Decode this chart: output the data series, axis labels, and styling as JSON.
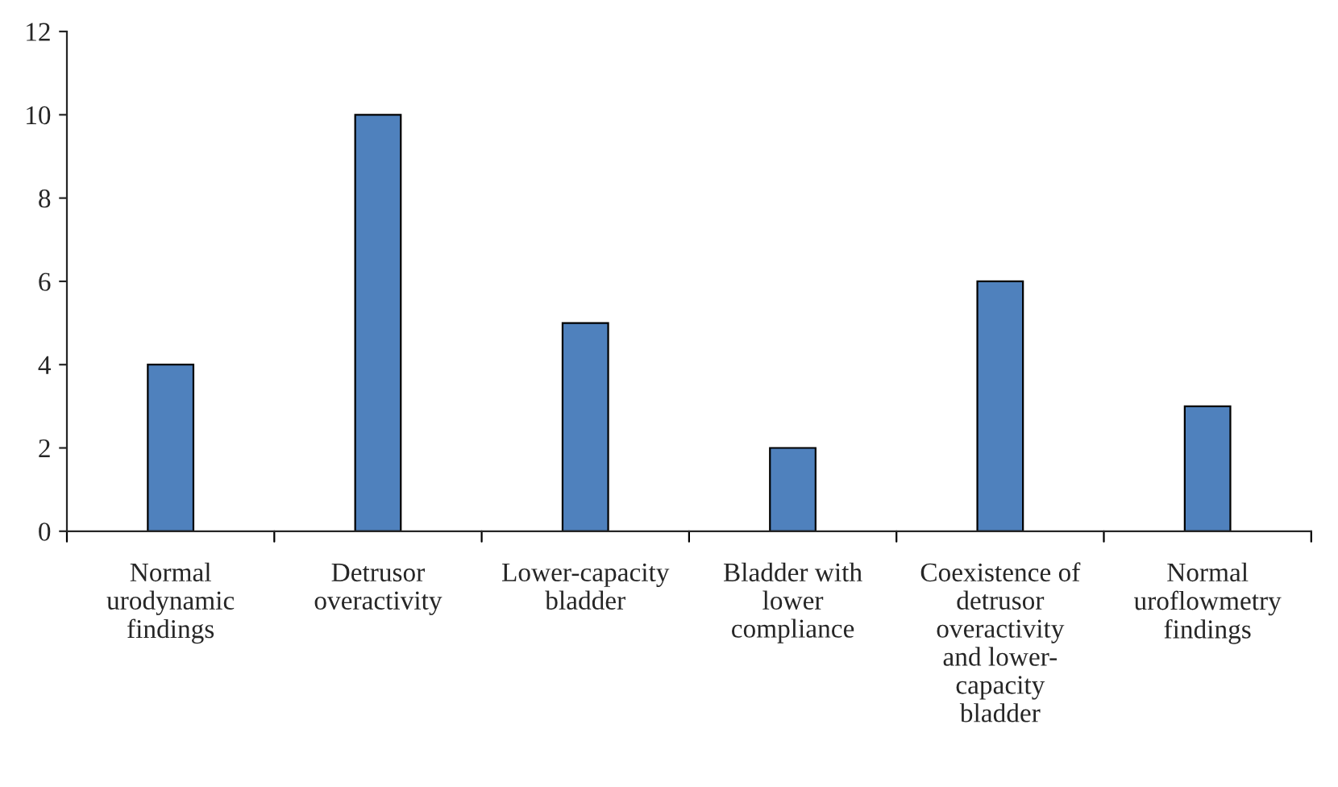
{
  "chart_data": {
    "type": "bar",
    "categories": [
      "Normal\nurodynamic\nfindings",
      "Detrusor\noveractivity",
      "Lower-capacity\nbladder",
      "Bladder with\nlower\ncompliance",
      "Coexistence of\ndetrusor\noveractivity\nand lower-\ncapacity\nbladder",
      "Normal\nuroflowmetry\nfindings"
    ],
    "values": [
      4,
      10,
      5,
      2,
      6,
      3
    ],
    "color": "#4f81bd",
    "ylim": [
      0,
      12
    ],
    "yticks": [
      0,
      2,
      4,
      6,
      8,
      10,
      12
    ],
    "grid": false,
    "legend": false
  }
}
